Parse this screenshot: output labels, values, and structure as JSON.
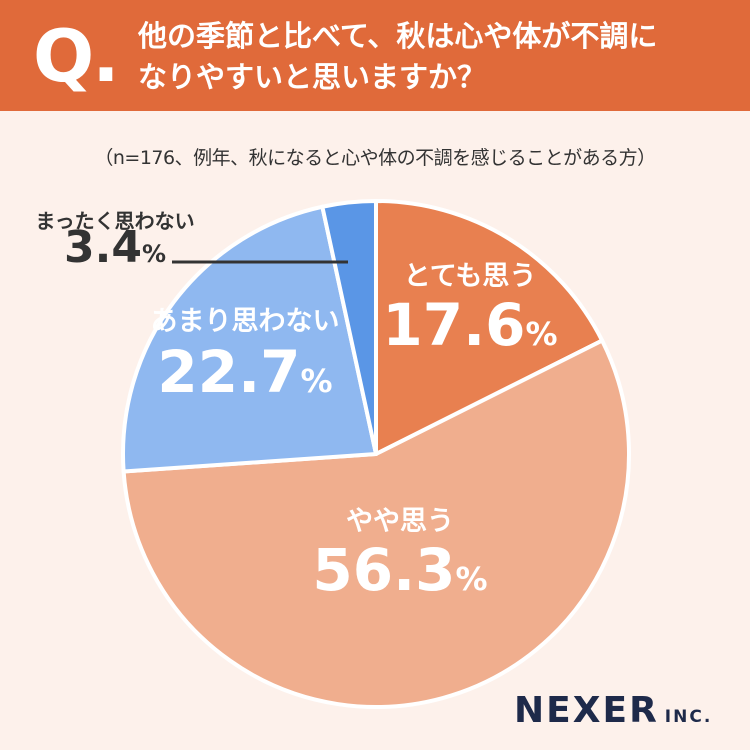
{
  "header": {
    "q_mark": "Q.",
    "question_line1": "他の季節と比べて、秋は心や体が不調に",
    "question_line2": "なりやすいと思いますか？"
  },
  "note": "（n=176、例年、秋になると心や体の不調を感じることがある方）",
  "colors": {
    "header_bg": "#e06a3a",
    "background": "#fdf1eb",
    "strongly_agree": "#e88050",
    "somewhat_agree": "#f0ae8e",
    "somewhat_disagree": "#8fb8f0",
    "strongly_disagree": "#5a96e6"
  },
  "chart_data": {
    "type": "pie",
    "title": "他の季節と比べて、秋は心や体が不調になりやすいと思いますか？",
    "sample_note": "（n=176、例年、秋になると心や体の不調を感じることがある方）",
    "unit": "%",
    "slices": [
      {
        "label": "とても思う",
        "value": 17.6,
        "color": "#e88050",
        "label_color": "#ffffff"
      },
      {
        "label": "やや思う",
        "value": 56.3,
        "color": "#f0ae8e",
        "label_color": "#ffffff"
      },
      {
        "label": "あまり思わない",
        "value": 22.7,
        "color": "#8fb8f0",
        "label_color": "#ffffff"
      },
      {
        "label": "まったく思わない",
        "value": 3.4,
        "color": "#5a96e6",
        "label_color": "#333333",
        "label_outside": true
      }
    ]
  },
  "logo": {
    "main": "NEXER",
    "sub": "INC."
  }
}
